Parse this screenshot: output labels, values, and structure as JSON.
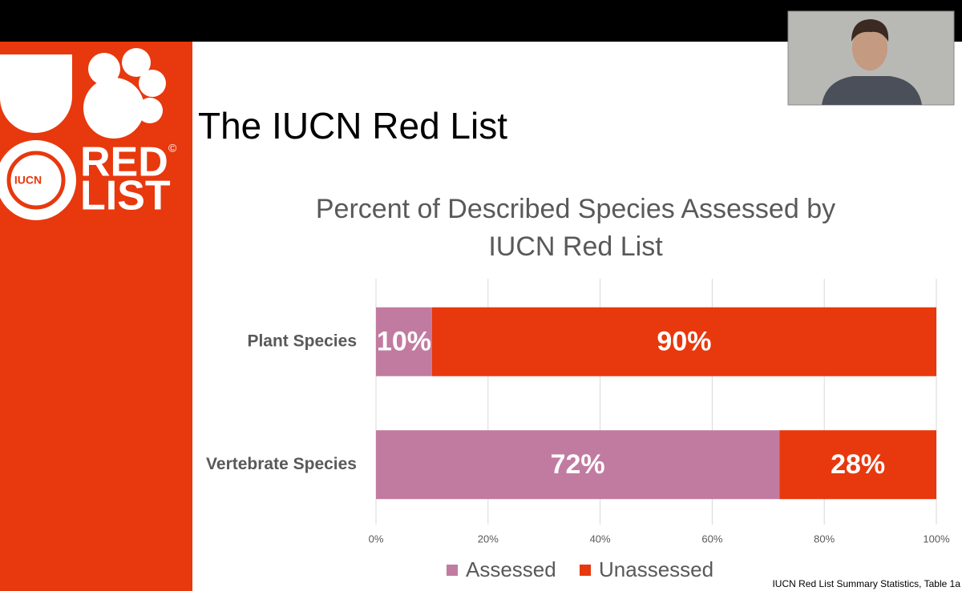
{
  "slide_title": "The IUCN Red List",
  "logo": {
    "badge": "IUCN",
    "line1": "RED",
    "line2": "LIST",
    "mark": "©"
  },
  "source": "IUCN Red List Summary Statistics, Table 1a",
  "chart_data": {
    "type": "stacked-hbar",
    "title": "Percent of Described Species Assessed by IUCN Red List",
    "categories": [
      "Plant Species",
      "Vertebrate Species"
    ],
    "series": [
      {
        "name": "Assessed",
        "color": "#c27ba0",
        "values": [
          10,
          72
        ],
        "value_labels": [
          "10%",
          "72%"
        ]
      },
      {
        "name": "Unassessed",
        "color": "#e8380d",
        "values": [
          90,
          28
        ],
        "value_labels": [
          "90%",
          "28%"
        ]
      }
    ],
    "xlim": [
      0,
      100
    ],
    "xticks": [
      {
        "value": 0,
        "label": "0%"
      },
      {
        "value": 20,
        "label": "20%"
      },
      {
        "value": 40,
        "label": "40%"
      },
      {
        "value": 60,
        "label": "60%"
      },
      {
        "value": 80,
        "label": "80%"
      },
      {
        "value": 100,
        "label": "100%"
      }
    ],
    "grid": true,
    "legend": "bottom"
  }
}
